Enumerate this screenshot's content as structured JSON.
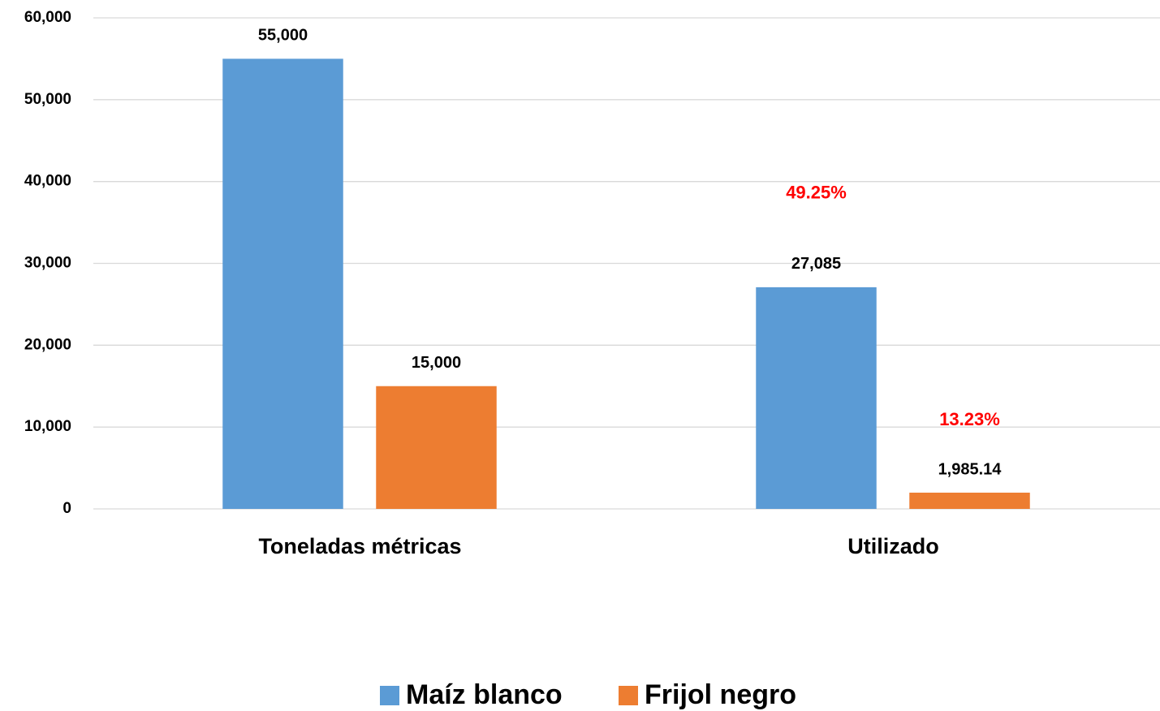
{
  "chart_data": {
    "type": "bar",
    "categories": [
      "Toneladas métricas",
      "Utilizado"
    ],
    "series": [
      {
        "name": "Maíz blanco",
        "color": "#5b9bd5",
        "values": [
          55000,
          27085
        ],
        "value_labels": [
          "55,000",
          "27,085"
        ]
      },
      {
        "name": "Frijol negro",
        "color": "#ed7d31",
        "values": [
          15000,
          1985.14
        ],
        "value_labels": [
          "15,000",
          "1,985.14"
        ]
      }
    ],
    "annotations": [
      "49.25%",
      "13.23%"
    ],
    "annotation_color": "#ff0000",
    "ylim": [
      0,
      60000
    ],
    "yticks": [
      0,
      {
        "value": 10000,
        "label": "10,000"
      },
      {
        "value": 20000,
        "label": "20,000"
      },
      {
        "value": 30000,
        "label": "30,000"
      },
      {
        "value": 40000,
        "label": "40,000"
      },
      {
        "value": 50000,
        "label": "50,000"
      },
      {
        "value": 60000,
        "label": "60,000"
      }
    ],
    "grid": true,
    "legend": "bottom"
  }
}
